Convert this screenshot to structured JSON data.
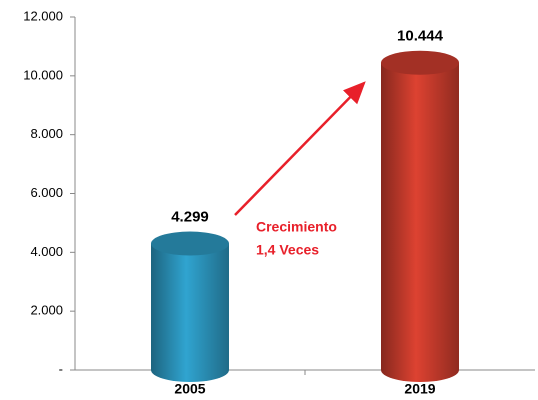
{
  "chart_data": {
    "type": "bar",
    "categories": [
      "2005",
      "2019"
    ],
    "series": [
      {
        "values": [
          4299,
          10444
        ],
        "value_labels": [
          "4.299",
          "10.444"
        ],
        "colors": [
          "#2a8fb5",
          "#c0392b"
        ]
      }
    ],
    "ylim": [
      0,
      12000
    ],
    "yticks": [
      {
        "value": 0,
        "label": "-"
      },
      {
        "value": 2000,
        "label": "2.000"
      },
      {
        "value": 4000,
        "label": "4.000"
      },
      {
        "value": 6000,
        "label": "6.000"
      },
      {
        "value": 8000,
        "label": "8.000"
      },
      {
        "value": 10000,
        "label": "10.000"
      },
      {
        "value": 12000,
        "label": "12.000"
      }
    ],
    "annotation": [
      "Crecimiento",
      "1,4 Veces"
    ]
  }
}
